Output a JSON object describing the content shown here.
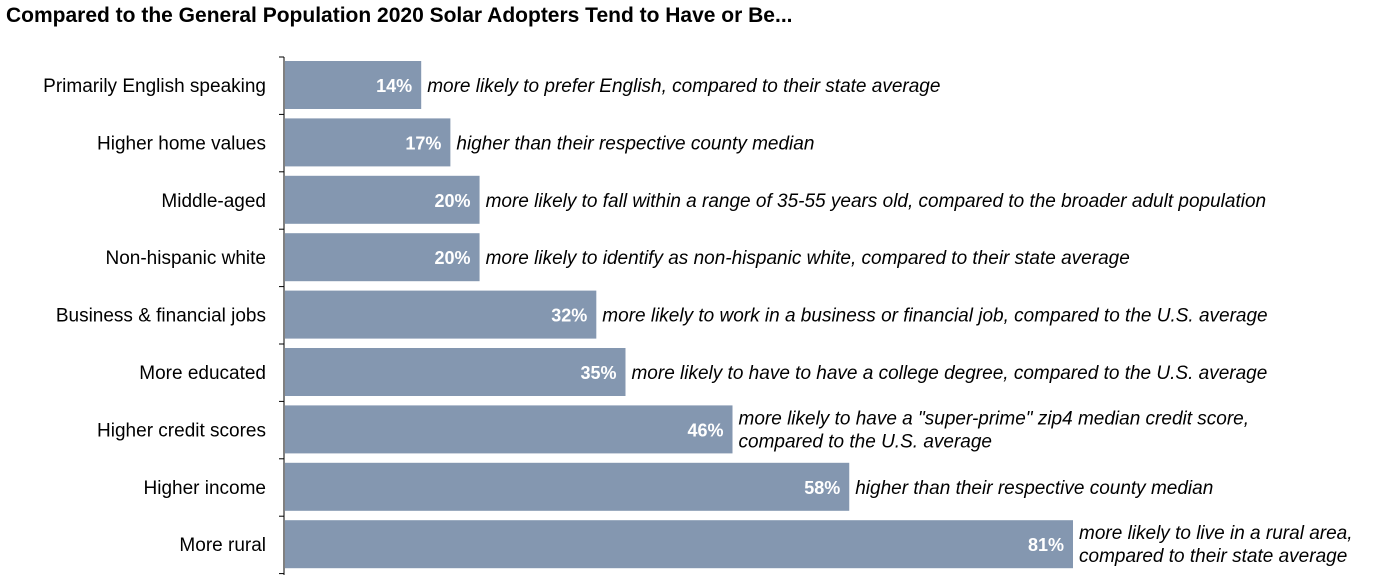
{
  "chart_data": {
    "type": "bar",
    "orientation": "horizontal",
    "title": "Compared to the General Population 2020 Solar Adopters Tend to Have or Be...",
    "categories": [
      "Primarily English speaking",
      "Higher home values",
      "Middle-aged",
      "Non-hispanic white",
      "Business & financial jobs",
      "More educated",
      "Higher credit scores",
      "Higher income",
      "More rural"
    ],
    "values": [
      14,
      17,
      20,
      20,
      32,
      35,
      46,
      58,
      81
    ],
    "value_labels": [
      "14%",
      "17%",
      "20%",
      "20%",
      "32%",
      "35%",
      "46%",
      "58%",
      "81%"
    ],
    "annotations": [
      [
        "more likely to prefer English, compared to their state average"
      ],
      [
        "higher than their respective county median"
      ],
      [
        "more likely to fall within a range of 35-55 years old, compared to the broader adult population"
      ],
      [
        "more likely to identify as non-hispanic white, compared to their state average"
      ],
      [
        "more likely to work in a business or financial job, compared to the U.S. average"
      ],
      [
        "more likely to have to have a college degree, compared to the U.S. average"
      ],
      [
        "more likely to have a \"super-prime\" zip4 median credit score,",
        "compared to the U.S. average"
      ],
      [
        "higher than their respective county median"
      ],
      [
        "more likely to live in a rural area,",
        "compared to their state average"
      ]
    ],
    "xlim": [
      0,
      81
    ],
    "bar_color": "#8497b0",
    "value_label_color": "#ffffff",
    "grid": false
  }
}
